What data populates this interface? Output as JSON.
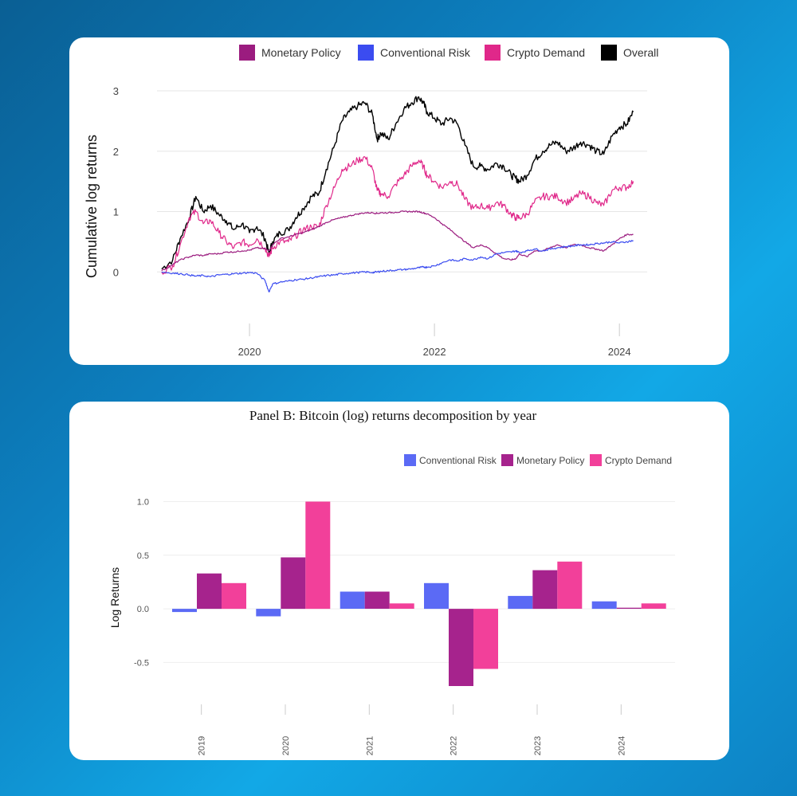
{
  "chart_data": [
    {
      "type": "line",
      "title": "",
      "xlabel": "",
      "ylabel": "Cumulative log returns",
      "xlim": [
        2019.0,
        2024.3
      ],
      "ylim": [
        -0.3,
        3.0
      ],
      "xticks": [
        "2020",
        "2022",
        "2024"
      ],
      "yticks": [
        "0",
        "1",
        "2",
        "3"
      ],
      "grid": true,
      "legend_position": "top",
      "legend": [
        "Monetary Policy",
        "Conventional Risk",
        "Crypto Demand",
        "Overall"
      ],
      "series": [
        {
          "name": "Overall",
          "color": "#000000",
          "x": [
            2019.05,
            2019.17,
            2019.25,
            2019.35,
            2019.42,
            2019.5,
            2019.58,
            2019.67,
            2019.75,
            2019.83,
            2019.92,
            2020.0,
            2020.08,
            2020.17,
            2020.21,
            2020.25,
            2020.33,
            2020.42,
            2020.5,
            2020.58,
            2020.67,
            2020.75,
            2020.83,
            2020.92,
            2021.0,
            2021.08,
            2021.17,
            2021.25,
            2021.33,
            2021.38,
            2021.42,
            2021.5,
            2021.58,
            2021.67,
            2021.75,
            2021.83,
            2021.88,
            2021.92,
            2022.0,
            2022.08,
            2022.17,
            2022.25,
            2022.33,
            2022.42,
            2022.5,
            2022.58,
            2022.67,
            2022.75,
            2022.83,
            2022.88,
            2022.92,
            2023.0,
            2023.08,
            2023.17,
            2023.25,
            2023.33,
            2023.42,
            2023.5,
            2023.58,
            2023.67,
            2023.75,
            2023.83,
            2023.92,
            2024.0,
            2024.08,
            2024.15
          ],
          "values": [
            0.05,
            0.2,
            0.55,
            0.9,
            1.25,
            1.0,
            1.1,
            0.95,
            0.85,
            0.7,
            0.8,
            0.65,
            0.75,
            0.55,
            0.3,
            0.5,
            0.65,
            0.7,
            0.9,
            1.05,
            1.25,
            1.3,
            1.7,
            2.1,
            2.5,
            2.65,
            2.75,
            2.8,
            2.6,
            2.2,
            2.3,
            2.2,
            2.45,
            2.7,
            2.8,
            2.9,
            2.8,
            2.65,
            2.55,
            2.45,
            2.55,
            2.45,
            2.1,
            1.75,
            1.75,
            1.7,
            1.8,
            1.75,
            1.6,
            1.55,
            1.5,
            1.6,
            1.85,
            2.0,
            2.1,
            2.15,
            2.0,
            2.05,
            2.15,
            2.1,
            2.0,
            1.95,
            2.25,
            2.4,
            2.45,
            2.65
          ]
        },
        {
          "name": "Crypto Demand",
          "color": "#e0288a",
          "x": [
            2019.05,
            2019.17,
            2019.25,
            2019.35,
            2019.42,
            2019.5,
            2019.58,
            2019.67,
            2019.75,
            2019.83,
            2019.92,
            2020.0,
            2020.08,
            2020.17,
            2020.21,
            2020.25,
            2020.33,
            2020.42,
            2020.5,
            2020.58,
            2020.67,
            2020.75,
            2020.83,
            2020.92,
            2021.0,
            2021.08,
            2021.17,
            2021.25,
            2021.33,
            2021.38,
            2021.42,
            2021.5,
            2021.58,
            2021.67,
            2021.75,
            2021.83,
            2021.88,
            2021.92,
            2022.0,
            2022.08,
            2022.17,
            2022.25,
            2022.33,
            2022.42,
            2022.5,
            2022.58,
            2022.67,
            2022.75,
            2022.83,
            2022.88,
            2022.92,
            2023.0,
            2023.08,
            2023.17,
            2023.25,
            2023.33,
            2023.42,
            2023.5,
            2023.58,
            2023.67,
            2023.75,
            2023.83,
            2023.92,
            2024.0,
            2024.08,
            2024.15
          ],
          "values": [
            0.0,
            0.1,
            0.45,
            0.9,
            1.0,
            0.8,
            0.85,
            0.65,
            0.5,
            0.4,
            0.5,
            0.45,
            0.55,
            0.4,
            0.25,
            0.4,
            0.5,
            0.5,
            0.6,
            0.7,
            0.75,
            0.75,
            1.1,
            1.4,
            1.7,
            1.75,
            1.85,
            1.9,
            1.7,
            1.35,
            1.3,
            1.25,
            1.45,
            1.6,
            1.75,
            1.85,
            1.75,
            1.6,
            1.5,
            1.4,
            1.5,
            1.45,
            1.2,
            1.05,
            1.1,
            1.05,
            1.15,
            1.1,
            0.95,
            0.9,
            0.9,
            0.95,
            1.15,
            1.25,
            1.25,
            1.25,
            1.15,
            1.2,
            1.3,
            1.25,
            1.15,
            1.1,
            1.35,
            1.4,
            1.4,
            1.5
          ]
        },
        {
          "name": "Monetary Policy",
          "color": "#9b1c7f",
          "x": [
            2019.05,
            2019.17,
            2019.25,
            2019.35,
            2019.42,
            2019.5,
            2019.58,
            2019.67,
            2019.75,
            2019.83,
            2019.92,
            2020.0,
            2020.08,
            2020.17,
            2020.21,
            2020.25,
            2020.33,
            2020.42,
            2020.5,
            2020.58,
            2020.67,
            2020.75,
            2020.83,
            2020.92,
            2021.0,
            2021.08,
            2021.17,
            2021.25,
            2021.33,
            2021.38,
            2021.42,
            2021.5,
            2021.58,
            2021.67,
            2021.75,
            2021.83,
            2021.88,
            2021.92,
            2022.0,
            2022.08,
            2022.17,
            2022.25,
            2022.33,
            2022.42,
            2022.5,
            2022.58,
            2022.67,
            2022.75,
            2022.83,
            2022.88,
            2022.92,
            2023.0,
            2023.08,
            2023.17,
            2023.25,
            2023.33,
            2023.42,
            2023.5,
            2023.58,
            2023.67,
            2023.75,
            2023.83,
            2023.92,
            2024.0,
            2024.08,
            2024.15
          ],
          "values": [
            0.02,
            0.12,
            0.2,
            0.25,
            0.28,
            0.27,
            0.3,
            0.3,
            0.33,
            0.33,
            0.35,
            0.36,
            0.4,
            0.38,
            0.35,
            0.45,
            0.55,
            0.58,
            0.62,
            0.65,
            0.7,
            0.75,
            0.82,
            0.87,
            0.9,
            0.93,
            0.96,
            0.98,
            0.98,
            0.97,
            0.98,
            0.98,
            0.99,
            1.0,
            1.0,
            1.0,
            0.98,
            0.96,
            0.9,
            0.8,
            0.7,
            0.6,
            0.5,
            0.4,
            0.45,
            0.4,
            0.3,
            0.22,
            0.2,
            0.22,
            0.3,
            0.25,
            0.35,
            0.35,
            0.4,
            0.45,
            0.4,
            0.45,
            0.45,
            0.4,
            0.38,
            0.35,
            0.45,
            0.55,
            0.62,
            0.62
          ]
        },
        {
          "name": "Conventional Risk",
          "color": "#3b4cf0",
          "x": [
            2019.05,
            2019.17,
            2019.25,
            2019.35,
            2019.42,
            2019.5,
            2019.58,
            2019.67,
            2019.75,
            2019.83,
            2019.92,
            2020.0,
            2020.08,
            2020.17,
            2020.21,
            2020.25,
            2020.33,
            2020.42,
            2020.5,
            2020.58,
            2020.67,
            2020.75,
            2020.83,
            2020.92,
            2021.0,
            2021.08,
            2021.17,
            2021.25,
            2021.33,
            2021.38,
            2021.42,
            2021.5,
            2021.58,
            2021.67,
            2021.75,
            2021.83,
            2021.88,
            2021.92,
            2022.0,
            2022.08,
            2022.17,
            2022.25,
            2022.33,
            2022.42,
            2022.5,
            2022.58,
            2022.67,
            2022.75,
            2022.83,
            2022.88,
            2022.92,
            2023.0,
            2023.08,
            2023.17,
            2023.25,
            2023.33,
            2023.42,
            2023.5,
            2023.58,
            2023.67,
            2023.75,
            2023.83,
            2023.92,
            2024.0,
            2024.08,
            2024.15
          ],
          "values": [
            0.0,
            -0.02,
            -0.03,
            -0.05,
            -0.07,
            -0.06,
            -0.08,
            -0.05,
            -0.04,
            -0.03,
            -0.02,
            -0.01,
            -0.02,
            -0.15,
            -0.33,
            -0.2,
            -0.17,
            -0.15,
            -0.13,
            -0.12,
            -0.1,
            -0.08,
            -0.06,
            -0.05,
            -0.03,
            -0.02,
            -0.01,
            0.0,
            -0.01,
            0.0,
            0.01,
            0.02,
            0.03,
            0.04,
            0.05,
            0.07,
            0.08,
            0.08,
            0.1,
            0.15,
            0.2,
            0.18,
            0.22,
            0.2,
            0.25,
            0.22,
            0.3,
            0.32,
            0.33,
            0.35,
            0.32,
            0.35,
            0.38,
            0.35,
            0.38,
            0.4,
            0.42,
            0.43,
            0.45,
            0.45,
            0.47,
            0.48,
            0.5,
            0.48,
            0.5,
            0.52
          ]
        }
      ]
    },
    {
      "type": "bar",
      "title": "Panel B: Bitcoin (log) returns decomposition by year",
      "xlabel": "",
      "ylabel": "Log Returns",
      "ylim": [
        -0.72,
        1.1
      ],
      "yticks": [
        "1.0",
        "0.5",
        "0.0",
        "-0.5"
      ],
      "grid": true,
      "legend_position": "top-right",
      "legend": [
        "Conventional Risk",
        "Monetary Policy",
        "Crypto Demand"
      ],
      "categories": [
        "2019",
        "2020",
        "2021",
        "2022",
        "2023",
        "2024"
      ],
      "series": [
        {
          "name": "Conventional Risk",
          "color": "#5b6af5",
          "values": [
            -0.03,
            -0.07,
            0.16,
            0.24,
            0.12,
            0.07
          ]
        },
        {
          "name": "Monetary Policy",
          "color": "#a6238d",
          "values": [
            0.33,
            0.48,
            0.16,
            -0.72,
            0.36,
            0.01
          ]
        },
        {
          "name": "Crypto Demand",
          "color": "#f2409a",
          "values": [
            0.24,
            1.0,
            0.05,
            -0.56,
            0.44,
            0.05
          ]
        }
      ]
    }
  ]
}
